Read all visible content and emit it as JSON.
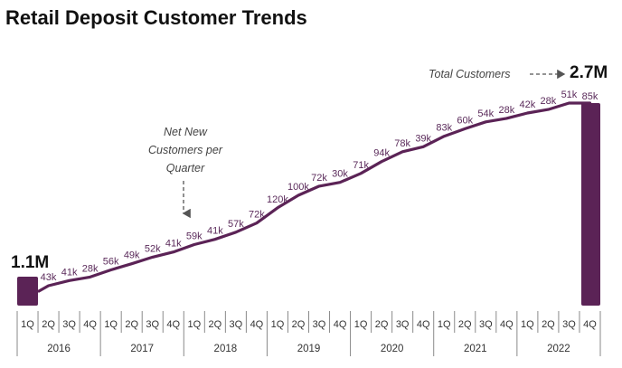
{
  "chart_data": {
    "type": "line",
    "title": "Retail Deposit Customer Trends",
    "colors": {
      "series": "#5b2356",
      "axis": "#888888",
      "text": "#111111"
    },
    "years": [
      "2016",
      "2017",
      "2018",
      "2019",
      "2020",
      "2021",
      "2022"
    ],
    "quarters": [
      "1Q",
      "2Q",
      "3Q",
      "4Q"
    ],
    "start_bar": {
      "label": "1.1M",
      "value_millions": 1.1,
      "period": "2016 1Q"
    },
    "end_bar": {
      "label": "2.7M",
      "value_millions": 2.7,
      "period": "2022 4Q",
      "net_new_label": "85k"
    },
    "series": [
      {
        "name": "Total Customers",
        "periods": [
          "2016 2Q",
          "2016 3Q",
          "2016 4Q",
          "2017 1Q",
          "2017 2Q",
          "2017 3Q",
          "2017 4Q",
          "2018 1Q",
          "2018 2Q",
          "2018 3Q",
          "2018 4Q",
          "2019 1Q",
          "2019 2Q",
          "2019 3Q",
          "2019 4Q",
          "2020 1Q",
          "2020 2Q",
          "2020 3Q",
          "2020 4Q",
          "2021 1Q",
          "2021 2Q",
          "2021 3Q",
          "2021 4Q",
          "2022 1Q",
          "2022 2Q",
          "2022 3Q"
        ],
        "net_new_labels": [
          "43k",
          "41k",
          "28k",
          "56k",
          "49k",
          "52k",
          "41k",
          "59k",
          "41k",
          "57k",
          "72k",
          "120k",
          "100k",
          "72k",
          "30k",
          "71k",
          "94k",
          "78k",
          "39k",
          "83k",
          "60k",
          "54k",
          "28k",
          "42k",
          "28k",
          "51k"
        ],
        "net_new_k": [
          43,
          41,
          28,
          56,
          49,
          52,
          41,
          59,
          41,
          57,
          72,
          120,
          100,
          72,
          30,
          71,
          94,
          78,
          39,
          83,
          60,
          54,
          28,
          42,
          28,
          51
        ]
      }
    ],
    "annotations": {
      "total_customers": "Total Customers",
      "net_new_line1": "Net New",
      "net_new_line2": "Customers per",
      "net_new_line3": "Quarter"
    }
  }
}
